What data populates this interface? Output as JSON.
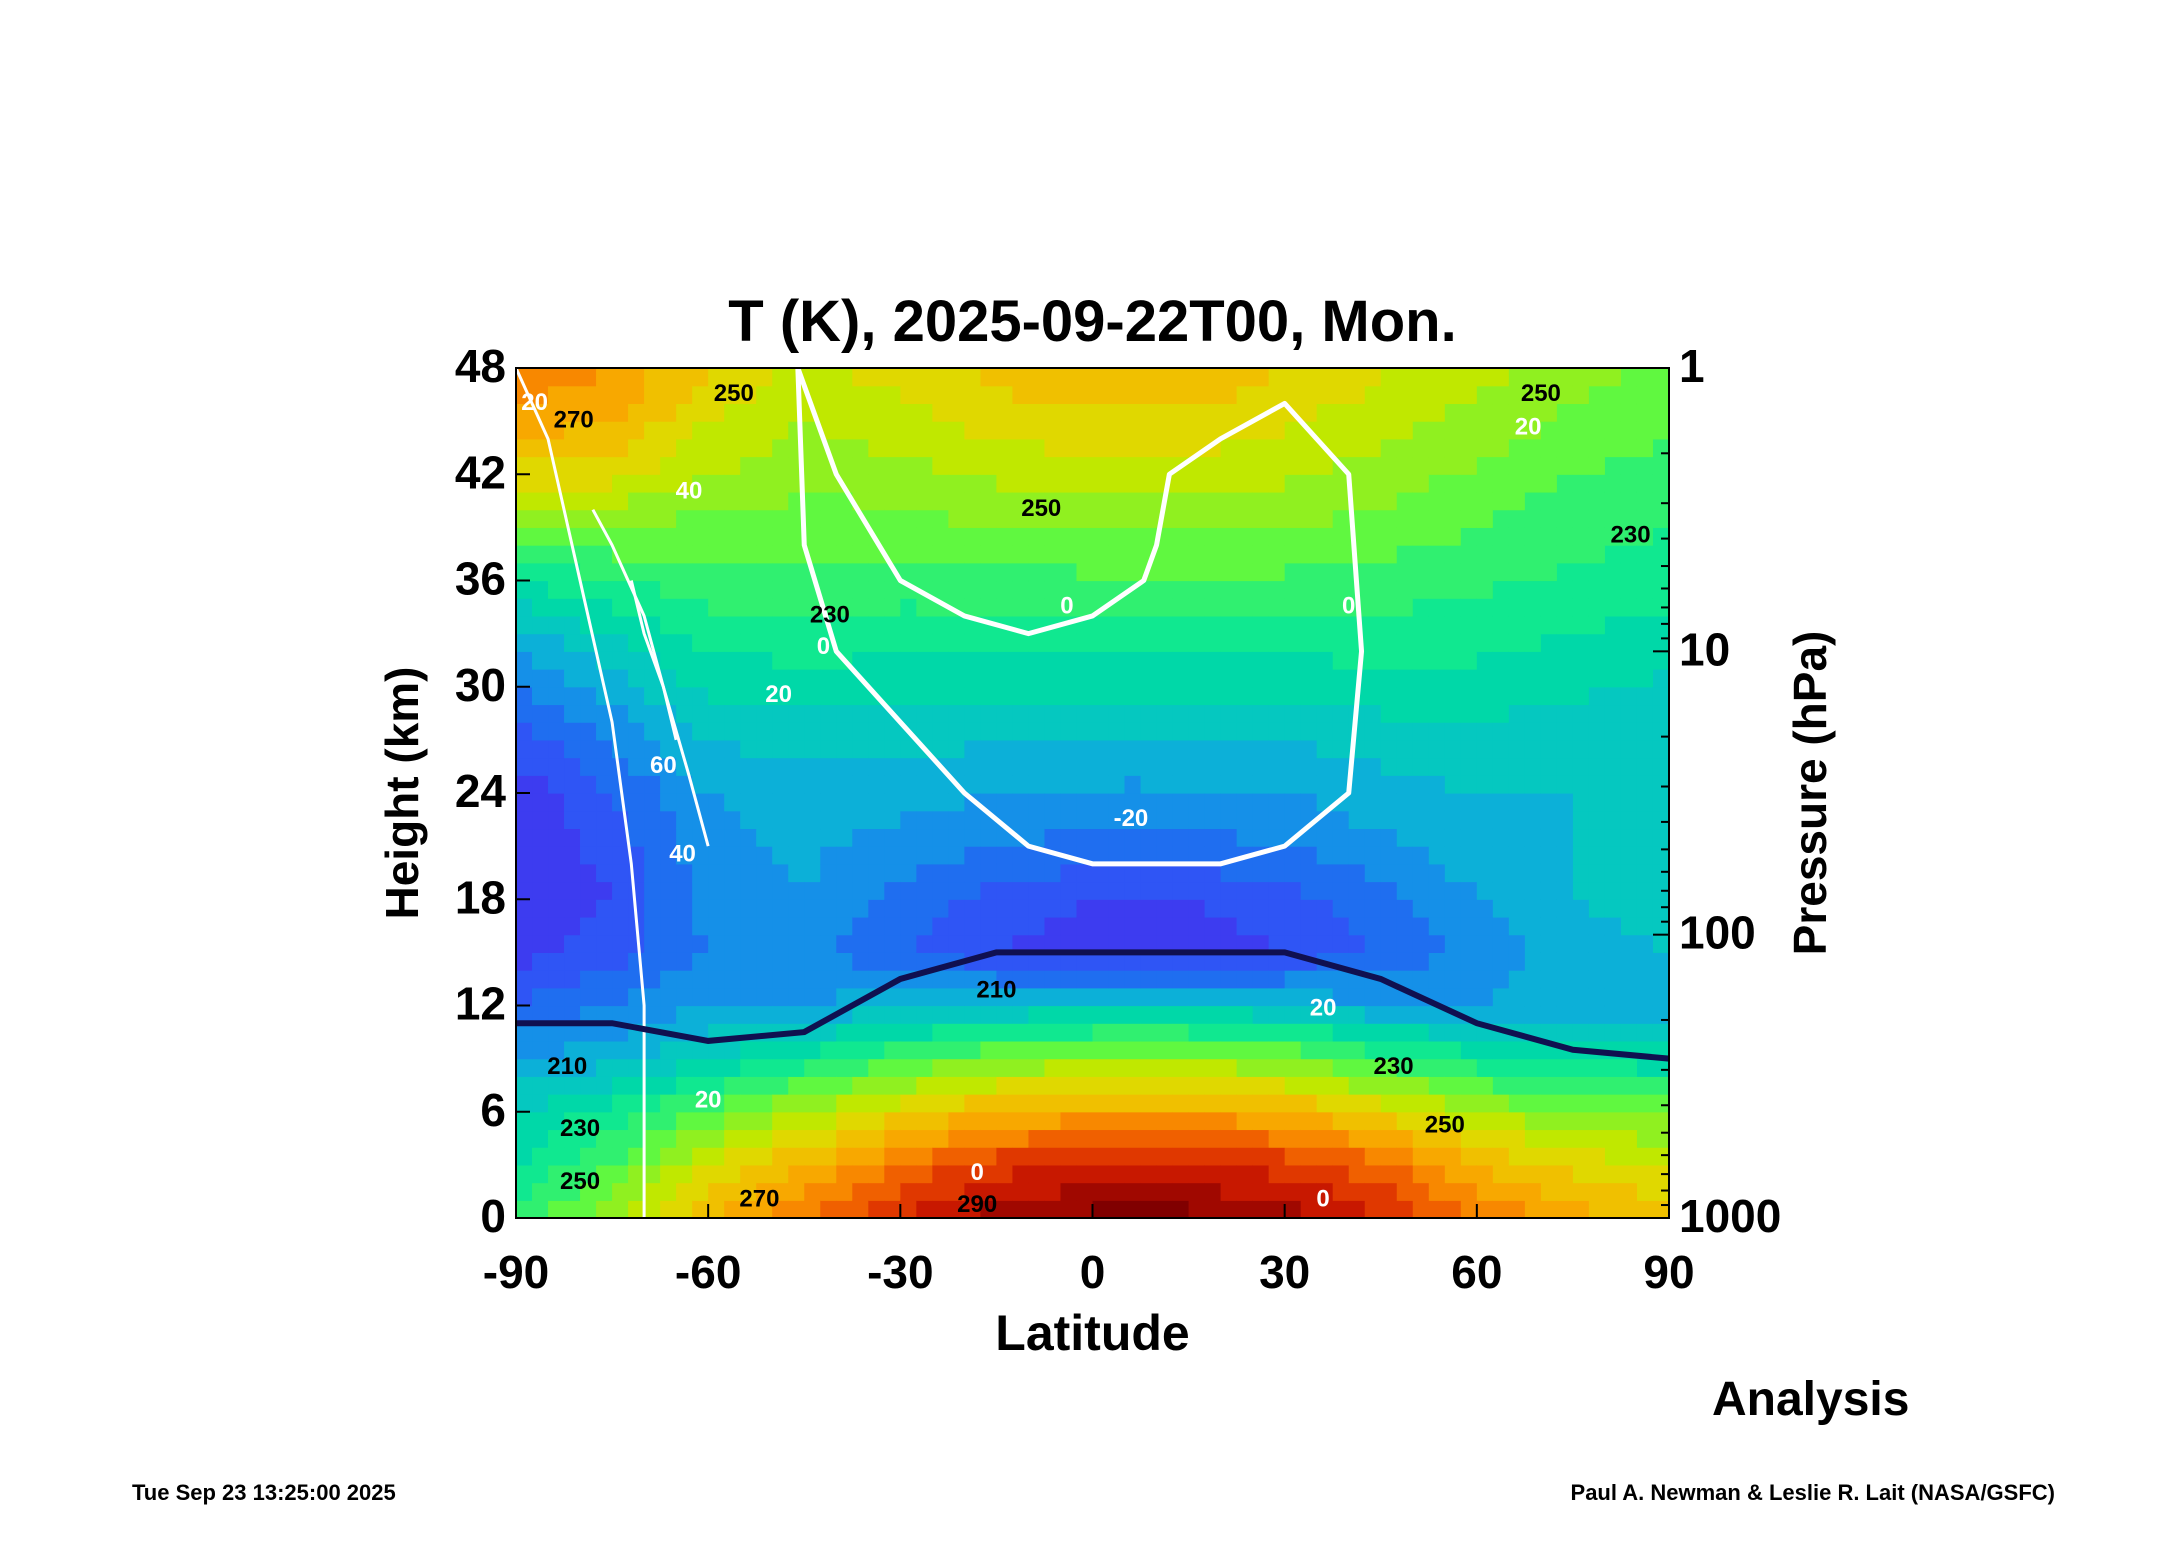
{
  "title": "T (K), 2025-09-22T00, Mon.",
  "analysis_label": "Analysis",
  "footer": {
    "timestamp": "Tue Sep 23 13:25:00 2025",
    "credit": "Paul A. Newman & Leslie R. Lait (NASA/GSFC)"
  },
  "chart_data": {
    "type": "heatmap",
    "title": "T (K), 2025-09-22T00, Mon.",
    "xlabel": "Latitude",
    "ylabel": "Height (km)",
    "y2label": "Pressure (hPa)",
    "xlim": [
      -90,
      90
    ],
    "ylim": [
      0,
      48
    ],
    "xticks": [
      "-90",
      "-60",
      "-30",
      "0",
      "30",
      "60",
      "90"
    ],
    "yticks": [
      "0",
      "6",
      "12",
      "18",
      "24",
      "30",
      "36",
      "42",
      "48"
    ],
    "y2ticks": [
      {
        "label": "1",
        "pressure": 1
      },
      {
        "label": "10",
        "pressure": 10
      },
      {
        "label": "100",
        "pressure": 100
      },
      {
        "label": "1000",
        "pressure": 1000
      }
    ],
    "lat": [
      -90,
      -75,
      -60,
      -45,
      -30,
      -15,
      0,
      15,
      30,
      45,
      60,
      75,
      90
    ],
    "height": [
      0,
      3,
      6,
      9,
      12,
      15,
      18,
      21,
      24,
      27,
      30,
      33,
      36,
      39,
      42,
      45,
      48
    ],
    "temperature_K": [
      [
        235,
        250,
        265,
        275,
        285,
        293,
        297,
        297,
        293,
        285,
        275,
        268,
        262
      ],
      [
        230,
        240,
        255,
        265,
        275,
        283,
        285,
        285,
        283,
        277,
        265,
        258,
        255
      ],
      [
        225,
        232,
        242,
        250,
        258,
        265,
        268,
        268,
        266,
        258,
        250,
        245,
        243
      ],
      [
        215,
        218,
        225,
        232,
        240,
        245,
        248,
        248,
        245,
        238,
        232,
        228,
        227
      ],
      [
        205,
        210,
        215,
        215,
        218,
        220,
        222,
        222,
        220,
        215,
        215,
        218,
        218
      ],
      [
        198,
        203,
        210,
        212,
        206,
        200,
        197,
        197,
        200,
        206,
        212,
        218,
        220
      ],
      [
        195,
        200,
        212,
        215,
        208,
        203,
        200,
        200,
        203,
        208,
        215,
        220,
        222
      ],
      [
        195,
        202,
        213,
        216,
        213,
        210,
        208,
        208,
        210,
        214,
        218,
        220,
        221
      ],
      [
        197,
        205,
        215,
        218,
        217,
        215,
        214,
        214,
        215,
        218,
        220,
        220,
        220
      ],
      [
        202,
        210,
        220,
        222,
        222,
        220,
        220,
        220,
        220,
        222,
        223,
        222,
        221
      ],
      [
        210,
        218,
        226,
        228,
        227,
        226,
        226,
        226,
        227,
        228,
        228,
        226,
        224
      ],
      [
        218,
        225,
        232,
        233,
        232,
        232,
        232,
        232,
        232,
        233,
        232,
        230,
        228
      ],
      [
        230,
        235,
        238,
        238,
        238,
        238,
        239,
        239,
        239,
        238,
        236,
        234,
        232
      ],
      [
        245,
        245,
        243,
        242,
        243,
        245,
        246,
        246,
        245,
        243,
        240,
        237,
        235
      ],
      [
        258,
        257,
        250,
        247,
        248,
        251,
        253,
        253,
        251,
        248,
        244,
        240,
        238
      ],
      [
        268,
        265,
        255,
        250,
        253,
        257,
        259,
        259,
        256,
        252,
        248,
        244,
        241
      ],
      [
        275,
        270,
        260,
        254,
        257,
        262,
        264,
        264,
        260,
        256,
        252,
        247,
        244
      ]
    ],
    "color_levels": [
      190,
      195,
      200,
      205,
      210,
      215,
      220,
      225,
      230,
      235,
      240,
      245,
      250,
      255,
      260,
      265,
      270,
      275,
      280,
      285,
      290,
      295
    ],
    "colors": [
      "#3a1fd0",
      "#3d3cf0",
      "#2f55f5",
      "#1f6ef0",
      "#1590e8",
      "#0cb0d8",
      "#05c8c0",
      "#00d8a8",
      "#10e890",
      "#30f070",
      "#60f840",
      "#90f020",
      "#c0e800",
      "#e0d800",
      "#f0c000",
      "#f8a800",
      "#f88800",
      "#f06000",
      "#e03800",
      "#c81800",
      "#a00800",
      "#800000"
    ],
    "tropopause": {
      "color": "#101050",
      "lat": [
        -90,
        -75,
        -60,
        -45,
        -30,
        -15,
        0,
        15,
        30,
        45,
        60,
        75,
        90
      ],
      "height_km": [
        11,
        11,
        10,
        10.5,
        13.5,
        15,
        15,
        15,
        15,
        13.5,
        11,
        9.5,
        9
      ]
    },
    "wind_contours": [
      {
        "level": 0,
        "lat": [
          -46,
          -45,
          -40,
          -30,
          -20,
          -10,
          0,
          10,
          20,
          30,
          40,
          42,
          40,
          30,
          20,
          12,
          10,
          8,
          0,
          -10,
          -20,
          -30,
          -40,
          -46
        ],
        "height_km": [
          48,
          38,
          32,
          28,
          24,
          21,
          20,
          20,
          20,
          21,
          24,
          32,
          42,
          46,
          44,
          42,
          38,
          36,
          34,
          33,
          34,
          36,
          42,
          48
        ]
      },
      {
        "level": 20,
        "lat": [
          -90,
          -85,
          -80,
          -75,
          -72,
          -70,
          -70
        ],
        "height_km": [
          48,
          44,
          36,
          28,
          20,
          12,
          0
        ]
      },
      {
        "level": 40,
        "lat": [
          -78,
          -75,
          -70,
          -67,
          -63,
          -60
        ],
        "height_km": [
          40,
          38,
          34,
          30,
          25,
          21
        ]
      },
      {
        "level": 60,
        "lat": [
          -72,
          -70,
          -67,
          -65
        ],
        "height_km": [
          36,
          33,
          30,
          27
        ]
      }
    ],
    "contour_labels": [
      {
        "text": "270",
        "lat": -81,
        "height_km": 45
      },
      {
        "text": "250",
        "lat": -56,
        "height_km": 46.5
      },
      {
        "text": "250",
        "lat": -8,
        "height_km": 40
      },
      {
        "text": "250",
        "lat": 70,
        "height_km": 46.5
      },
      {
        "text": "230",
        "lat": -41,
        "height_km": 34
      },
      {
        "text": "230",
        "lat": 84,
        "height_km": 38.5
      },
      {
        "text": "210",
        "lat": -82,
        "height_km": 8.5
      },
      {
        "text": "210",
        "lat": -15,
        "height_km": 12.8
      },
      {
        "text": "230",
        "lat": -80,
        "height_km": 5
      },
      {
        "text": "230",
        "lat": 47,
        "height_km": 8.5
      },
      {
        "text": "250",
        "lat": -80,
        "height_km": 2
      },
      {
        "text": "250",
        "lat": 55,
        "height_km": 5.2
      },
      {
        "text": "270",
        "lat": -52,
        "height_km": 1
      },
      {
        "text": "290",
        "lat": -18,
        "height_km": 0.7
      },
      {
        "text": "20",
        "lat": -86,
        "height_km": 46,
        "wind": true
      },
      {
        "text": "40",
        "lat": -63,
        "height_km": 41,
        "wind": true
      },
      {
        "text": "60",
        "lat": -67,
        "height_km": 25.5,
        "wind": true
      },
      {
        "text": "40",
        "lat": -64,
        "height_km": 20.5,
        "wind": true
      },
      {
        "text": "20",
        "lat": -49,
        "height_km": 29.5,
        "wind": true
      },
      {
        "text": "0",
        "lat": -42,
        "height_km": 33,
        "wind": true
      },
      {
        "text": "0",
        "lat": -4,
        "height_km": 34.5,
        "wind": true
      },
      {
        "text": "0",
        "lat": 40,
        "height_km": 34.5,
        "wind": true
      },
      {
        "text": "-20",
        "lat": 6,
        "height_km": 22.5,
        "wind": true
      },
      {
        "text": "20",
        "lat": 36,
        "height_km": 11.8,
        "wind": true
      },
      {
        "text": "20",
        "lat": -60,
        "height_km": 6.6,
        "wind": true
      },
      {
        "text": "0",
        "lat": -18,
        "height_km": 2.5,
        "wind": true
      },
      {
        "text": "0",
        "lat": 36,
        "height_km": 1,
        "wind": true
      },
      {
        "text": "20",
        "lat": 68,
        "height_km": 45,
        "wind": true
      }
    ]
  }
}
